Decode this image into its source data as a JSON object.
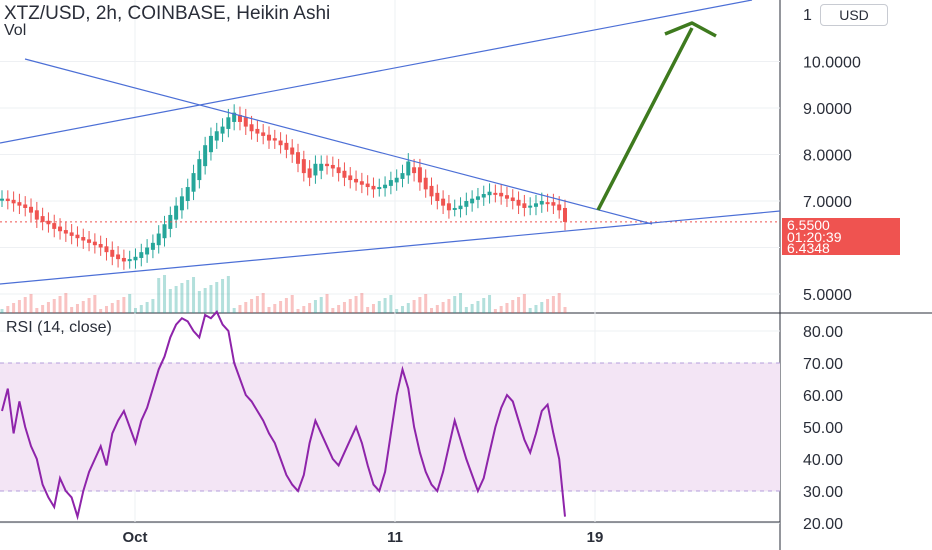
{
  "header": {
    "title": "XTZ/USD, 2h, COINBASE, Heikin Ashi",
    "volume_label": "Vol",
    "currency_button": "USD"
  },
  "rsi_panel": {
    "label": "RSI (14, close)"
  },
  "price_tags": {
    "price": "6.5500",
    "countdown": "01:20:39",
    "low": "6.4348"
  },
  "colors": {
    "up": "#26a69a",
    "down": "#ef5350",
    "trendline": "#4c6fd6",
    "arrow": "#3e7a1e",
    "rsi_line": "#8e24aa",
    "rsi_band": "#f3e5f5"
  },
  "chart_data": [
    {
      "type": "candlestick",
      "name": "price",
      "title": "XTZ/USD, 2h, COINBASE, Heikin Ashi",
      "y_axis_ticks": [
        5.0,
        7.0,
        8.0,
        9.0,
        10.0
      ],
      "y_axis_labels": [
        "5.0000",
        "7.0000",
        "8.0000",
        "9.0000",
        "10.0000"
      ],
      "x_axis_labels": [
        "Oct",
        "11",
        "19"
      ],
      "last_price": 6.55,
      "series_close": [
        7.05,
        7.0,
        6.95,
        6.9,
        6.85,
        6.75,
        6.6,
        6.55,
        6.5,
        6.4,
        6.35,
        6.3,
        6.25,
        6.2,
        6.15,
        6.1,
        6.05,
        6.0,
        5.9,
        5.8,
        5.75,
        5.7,
        5.75,
        5.8,
        5.9,
        6.0,
        6.1,
        6.3,
        6.5,
        6.7,
        6.9,
        7.1,
        7.3,
        7.6,
        7.9,
        8.2,
        8.4,
        8.5,
        8.6,
        8.8,
        8.9,
        8.7,
        8.6,
        8.5,
        8.45,
        8.4,
        8.3,
        8.3,
        8.2,
        8.1,
        8.0,
        7.8,
        7.6,
        7.5,
        7.8,
        7.8,
        7.75,
        7.7,
        7.6,
        7.5,
        7.45,
        7.4,
        7.35,
        7.3,
        7.25,
        7.3,
        7.35,
        7.45,
        7.5,
        7.6,
        7.85,
        7.6,
        7.4,
        7.25,
        7.1,
        7.0,
        6.9,
        6.8,
        6.85,
        6.9,
        7.0,
        7.05,
        7.1,
        7.15,
        7.2,
        7.15,
        7.1,
        7.05,
        7.0,
        6.9,
        6.85,
        6.9,
        6.95,
        7.0,
        6.95,
        6.9,
        6.8,
        6.55
      ]
    },
    {
      "type": "line",
      "name": "rsi",
      "title": "RSI (14, close)",
      "y_axis_ticks": [
        20,
        30,
        40,
        50,
        60,
        70,
        80
      ],
      "y_axis_labels": [
        "20.00",
        "30.00",
        "40.00",
        "50.00",
        "60.00",
        "70.00",
        "80.00"
      ],
      "band": [
        30,
        70
      ],
      "values": [
        55,
        62,
        48,
        58,
        50,
        44,
        40,
        32,
        28,
        25,
        34,
        30,
        28,
        22,
        30,
        36,
        40,
        44,
        38,
        48,
        52,
        55,
        50,
        45,
        52,
        56,
        62,
        68,
        72,
        78,
        82,
        84,
        83,
        80,
        78,
        85,
        84,
        86,
        82,
        80,
        70,
        65,
        60,
        58,
        55,
        52,
        48,
        45,
        40,
        35,
        32,
        30,
        35,
        45,
        52,
        48,
        44,
        40,
        38,
        42,
        46,
        50,
        45,
        38,
        32,
        30,
        36,
        48,
        60,
        68,
        62,
        50,
        42,
        36,
        32,
        30,
        36,
        44,
        52,
        46,
        40,
        35,
        30,
        34,
        42,
        50,
        56,
        60,
        58,
        52,
        46,
        42,
        48,
        55,
        57,
        48,
        40,
        22
      ]
    }
  ]
}
